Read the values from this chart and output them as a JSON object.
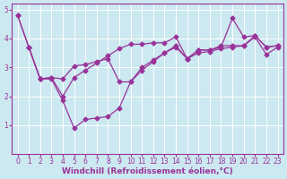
{
  "bg_color": "#cce8f0",
  "line_color": "#993399",
  "xlabel": "Windchill (Refroidissement éolien,°C)",
  "xlim": [
    -0.5,
    23.5
  ],
  "ylim": [
    0,
    5.2
  ],
  "yticks": [
    1,
    2,
    3,
    4,
    5
  ],
  "xticks": [
    0,
    1,
    2,
    3,
    4,
    5,
    6,
    7,
    8,
    9,
    10,
    11,
    12,
    13,
    14,
    15,
    16,
    17,
    18,
    19,
    20,
    21,
    22,
    23
  ],
  "series": [
    {
      "x": [
        0,
        1,
        2,
        3,
        4,
        5,
        6,
        7,
        8,
        9,
        10,
        11,
        12,
        13,
        14,
        15,
        16,
        17,
        18,
        19,
        20,
        21,
        22,
        23
      ],
      "y": [
        4.8,
        3.7,
        2.6,
        2.6,
        1.85,
        0.9,
        1.2,
        1.25,
        1.3,
        1.6,
        2.5,
        2.9,
        3.2,
        3.5,
        3.7,
        3.3,
        3.5,
        3.55,
        3.65,
        3.7,
        3.75,
        4.05,
        3.45,
        3.7
      ]
    },
    {
      "x": [
        0,
        1,
        2,
        3,
        4,
        5,
        6,
        7,
        8,
        9,
        10,
        11,
        12,
        13,
        14,
        15,
        16,
        17,
        18,
        19,
        20,
        21,
        22,
        23
      ],
      "y": [
        4.8,
        3.7,
        2.6,
        2.65,
        2.6,
        3.05,
        3.1,
        3.2,
        3.3,
        2.5,
        2.5,
        3.0,
        3.25,
        3.5,
        3.75,
        3.3,
        3.6,
        3.6,
        3.7,
        4.7,
        4.05,
        4.1,
        3.7,
        3.75
      ]
    },
    {
      "x": [
        1,
        2,
        3,
        4,
        5,
        6,
        7,
        8,
        9,
        10,
        11,
        12,
        13,
        14,
        15,
        16,
        17,
        18,
        19,
        20,
        21,
        22,
        23
      ],
      "y": [
        3.7,
        2.6,
        2.65,
        2.0,
        2.65,
        2.9,
        3.15,
        3.4,
        3.65,
        3.8,
        3.8,
        3.85,
        3.85,
        4.05,
        3.3,
        3.6,
        3.6,
        3.75,
        3.75,
        3.75,
        4.1,
        3.7,
        3.75
      ]
    }
  ],
  "marker": "D",
  "marker_size": 2.5,
  "line_width": 0.9,
  "tick_fontsize": 5.5,
  "xlabel_fontsize": 6.5
}
